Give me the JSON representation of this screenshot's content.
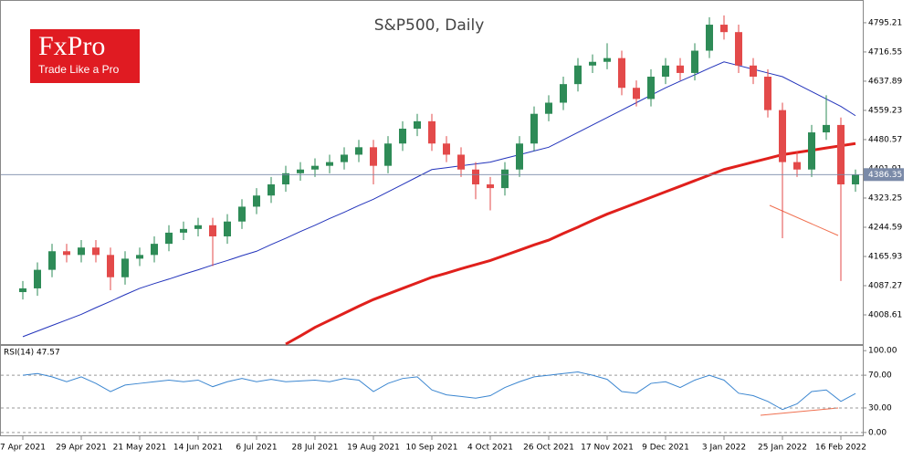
{
  "logo": {
    "brand": "FxPro",
    "tagline": "Trade Like a Pro"
  },
  "chart_data": {
    "type": "candlestick",
    "title": "S&P500, Daily",
    "categories": [
      "7 Apr 2021",
      null,
      null,
      null,
      "29 Apr 2021",
      null,
      null,
      null,
      "21 May 2021",
      null,
      null,
      null,
      "14 Jun 2021",
      null,
      null,
      null,
      "6 Jul 2021",
      null,
      null,
      null,
      "28 Jul 2021",
      null,
      null,
      null,
      "19 Aug 2021",
      null,
      null,
      null,
      "10 Sep 2021",
      null,
      null,
      null,
      "4 Oct 2021",
      null,
      null,
      null,
      "26 Oct 2021",
      null,
      null,
      null,
      "17 Nov 2021",
      null,
      null,
      null,
      "9 Dec 2021",
      null,
      null,
      null,
      "3 Jan 2022",
      null,
      null,
      null,
      "25 Jan 2022",
      null,
      null,
      null,
      "16 Feb 2022",
      null
    ],
    "open": [
      4070,
      4080,
      4130,
      4180,
      4170,
      4190,
      4170,
      4110,
      4160,
      4170,
      4200,
      4230,
      4240,
      4250,
      4220,
      4260,
      4300,
      4330,
      4360,
      4390,
      4400,
      4410,
      4420,
      4440,
      4460,
      4410,
      4470,
      4510,
      4530,
      4470,
      4440,
      4400,
      4360,
      4350,
      4400,
      4470,
      4550,
      4580,
      4630,
      4680,
      4690,
      4700,
      4620,
      4590,
      4650,
      4680,
      4660,
      4720,
      4790,
      4770,
      4680,
      4650,
      4560,
      4420,
      4400,
      4500,
      4520,
      4360
    ],
    "high": [
      4100,
      4150,
      4200,
      4200,
      4210,
      4210,
      4190,
      4180,
      4190,
      4220,
      4250,
      4260,
      4270,
      4270,
      4280,
      4320,
      4350,
      4380,
      4410,
      4420,
      4430,
      4440,
      4460,
      4480,
      4480,
      4490,
      4530,
      4550,
      4550,
      4490,
      4460,
      4420,
      4380,
      4420,
      4490,
      4570,
      4600,
      4650,
      4700,
      4710,
      4740,
      4720,
      4640,
      4670,
      4700,
      4700,
      4740,
      4810,
      4815,
      4790,
      4700,
      4670,
      4580,
      4450,
      4520,
      4600,
      4540,
      4400
    ],
    "low": [
      4050,
      4060,
      4110,
      4150,
      4150,
      4150,
      4075,
      4090,
      4140,
      4150,
      4180,
      4210,
      4220,
      4140,
      4200,
      4240,
      4280,
      4310,
      4340,
      4370,
      4380,
      4390,
      4400,
      4420,
      4360,
      4390,
      4450,
      4490,
      4450,
      4420,
      4380,
      4320,
      4290,
      4330,
      4380,
      4450,
      4530,
      4560,
      4610,
      4660,
      4670,
      4600,
      4570,
      4570,
      4630,
      4640,
      4640,
      4700,
      4750,
      4660,
      4630,
      4540,
      4215,
      4380,
      4380,
      4480,
      4100,
      4340
    ],
    "close": [
      4080,
      4130,
      4180,
      4170,
      4190,
      4170,
      4110,
      4160,
      4170,
      4200,
      4230,
      4240,
      4250,
      4220,
      4260,
      4300,
      4330,
      4360,
      4390,
      4400,
      4410,
      4420,
      4440,
      4460,
      4410,
      4470,
      4510,
      4530,
      4470,
      4440,
      4400,
      4360,
      4350,
      4400,
      4470,
      4550,
      4580,
      4630,
      4680,
      4690,
      4700,
      4620,
      4590,
      4650,
      4680,
      4660,
      4720,
      4790,
      4770,
      4680,
      4650,
      4560,
      4420,
      4400,
      4500,
      4520,
      4360,
      4386.35
    ],
    "up_color": "#2e8b57",
    "down_color": "#e34a4a",
    "overlays": [
      {
        "color": "#2233bb",
        "width": 1,
        "values": [
          3950,
          3965,
          3980,
          3995,
          4010,
          4028,
          4045,
          4063,
          4080,
          4093,
          4105,
          4118,
          4130,
          4143,
          4155,
          4168,
          4180,
          4198,
          4215,
          4233,
          4250,
          4268,
          4285,
          4303,
          4320,
          4340,
          4360,
          4380,
          4400,
          4405,
          4410,
          4415,
          4420,
          4430,
          4440,
          4450,
          4460,
          4480,
          4500,
          4520,
          4540,
          4560,
          4580,
          4600,
          4620,
          4638,
          4655,
          4673,
          4690,
          4680,
          4670,
          4660,
          4650,
          4630,
          4610,
          4590,
          4570,
          4545
        ]
      },
      {
        "color": "#e0201c",
        "width": 3,
        "values": [
          null,
          null,
          null,
          null,
          null,
          null,
          null,
          null,
          null,
          null,
          null,
          null,
          null,
          null,
          null,
          null,
          null,
          null,
          3930,
          3952,
          3975,
          3994,
          4013,
          4032,
          4050,
          4065,
          4080,
          4095,
          4110,
          4121,
          4133,
          4144,
          4155,
          4169,
          4183,
          4197,
          4210,
          4228,
          4245,
          4263,
          4280,
          4295,
          4310,
          4325,
          4340,
          4355,
          4370,
          4385,
          4400,
          4410,
          4420,
          4430,
          4440,
          4446,
          4452,
          4458,
          4464,
          4470
        ]
      }
    ],
    "ylim": [
      3930,
      4854
    ],
    "yticks": [
      4008.61,
      4087.27,
      4165.93,
      4244.59,
      4323.25,
      4401.91,
      4480.57,
      4559.23,
      4637.89,
      4716.55,
      4795.21
    ],
    "rsi": {
      "label": "RSI(14) 47.57",
      "color": "#3b86d0",
      "values": [
        70,
        72,
        68,
        62,
        68,
        60,
        50,
        58,
        60,
        62,
        64,
        62,
        64,
        56,
        62,
        66,
        62,
        65,
        62,
        63,
        64,
        62,
        66,
        64,
        50,
        60,
        66,
        68,
        52,
        46,
        44,
        42,
        45,
        55,
        62,
        68,
        70,
        72,
        74,
        70,
        65,
        50,
        48,
        60,
        62,
        55,
        64,
        70,
        64,
        48,
        45,
        38,
        28,
        35,
        50,
        52,
        38,
        47.57
      ],
      "ylim": [
        -3.5,
        105.8
      ],
      "yticks": [
        {
          "value": 0,
          "label": "0.00"
        },
        {
          "value": 30,
          "label": "30.00"
        },
        {
          "value": 70,
          "label": "70.00"
        },
        {
          "value": 100,
          "label": "100.00"
        }
      ]
    }
  }
}
